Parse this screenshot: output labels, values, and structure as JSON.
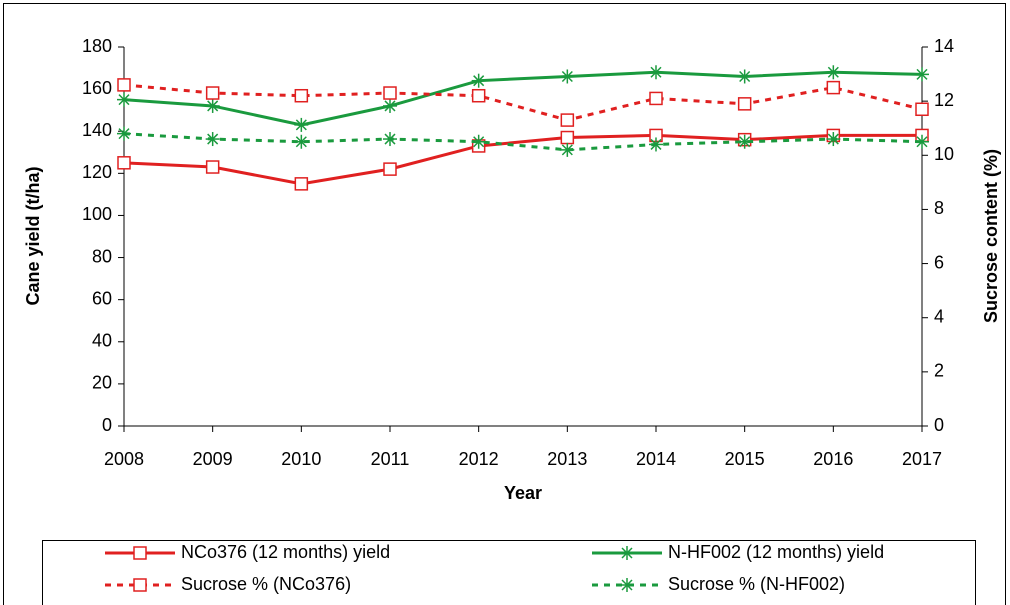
{
  "chart_data": {
    "type": "line",
    "categories": [
      "2008",
      "2009",
      "2010",
      "2011",
      "2012",
      "2013",
      "2014",
      "2015",
      "2016",
      "2017"
    ],
    "x_label": "Year",
    "y_label": "Cane yield (t/ha)",
    "y2_label": "Sucrose content (%)",
    "ylim": [
      0,
      180
    ],
    "yticks": [
      0,
      20,
      40,
      60,
      80,
      100,
      120,
      140,
      160,
      180
    ],
    "y2lim": [
      0,
      14
    ],
    "y2ticks": [
      0,
      2,
      4,
      6,
      8,
      10,
      12,
      14
    ],
    "series": [
      {
        "name": "NCo376 (12 months) yield",
        "color": "#e02020",
        "marker": "square",
        "line_style": "solid",
        "values": [
          125,
          123,
          115,
          122,
          133,
          137,
          138,
          136,
          138,
          138
        ]
      },
      {
        "name": "N-HF002 (12 months) yield",
        "color": "#1a9a3e",
        "marker": "asterisk",
        "line_style": "solid",
        "values": [
          155,
          152,
          143,
          152,
          164,
          166,
          168,
          166,
          168,
          167
        ]
      },
      {
        "name": "Sucrose % (NCo376)",
        "color": "#e02020",
        "marker": "square",
        "line_style": "dashed",
        "axis": "y2",
        "values": [
          12.6,
          12.3,
          12.2,
          12.3,
          12.2,
          11.3,
          12.1,
          11.9,
          12.5,
          11.7
        ]
      },
      {
        "name": "Sucrose % (N-HF002)",
        "color": "#1a9a3e",
        "marker": "asterisk",
        "line_style": "dashed",
        "axis": "y2",
        "values": [
          10.8,
          10.6,
          10.5,
          10.6,
          10.5,
          10.2,
          10.4,
          10.5,
          10.6,
          10.5
        ]
      }
    ]
  }
}
